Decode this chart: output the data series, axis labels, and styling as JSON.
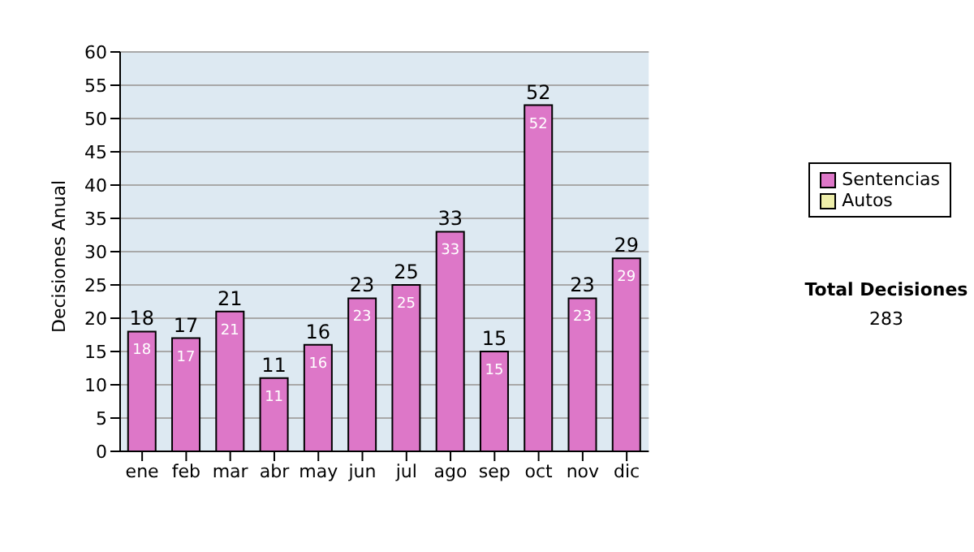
{
  "chart_data": {
    "type": "bar",
    "stacked": true,
    "ylabel": "Decisiones Anual",
    "categories": [
      "ene",
      "feb",
      "mar",
      "abr",
      "may",
      "jun",
      "jul",
      "ago",
      "sep",
      "oct",
      "nov",
      "dic"
    ],
    "series": [
      {
        "name": "Sentencias",
        "color": "#dd77c8",
        "values": [
          18,
          17,
          21,
          11,
          16,
          23,
          25,
          33,
          15,
          52,
          23,
          29
        ],
        "value_labels": [
          "18",
          "17",
          "21",
          "11",
          "16",
          "23",
          "25",
          "33",
          "15",
          "52",
          "23",
          "29"
        ]
      },
      {
        "name": "Autos",
        "color": "#eeeeaa",
        "values": [
          0,
          0,
          0,
          0,
          0,
          0,
          0,
          0,
          0,
          0,
          0,
          0
        ]
      }
    ],
    "totals": [
      "18",
      "17",
      "21",
      "11",
      "16",
      "23",
      "25",
      "33",
      "15",
      "52",
      "23",
      "29"
    ],
    "ylim": [
      0,
      60
    ],
    "yticks": [
      0,
      5,
      10,
      15,
      20,
      25,
      30,
      35,
      40,
      45,
      50,
      55,
      60
    ],
    "grid": "y",
    "legend": "right",
    "annotations": [
      "Total Decisiones",
      "283"
    ]
  }
}
